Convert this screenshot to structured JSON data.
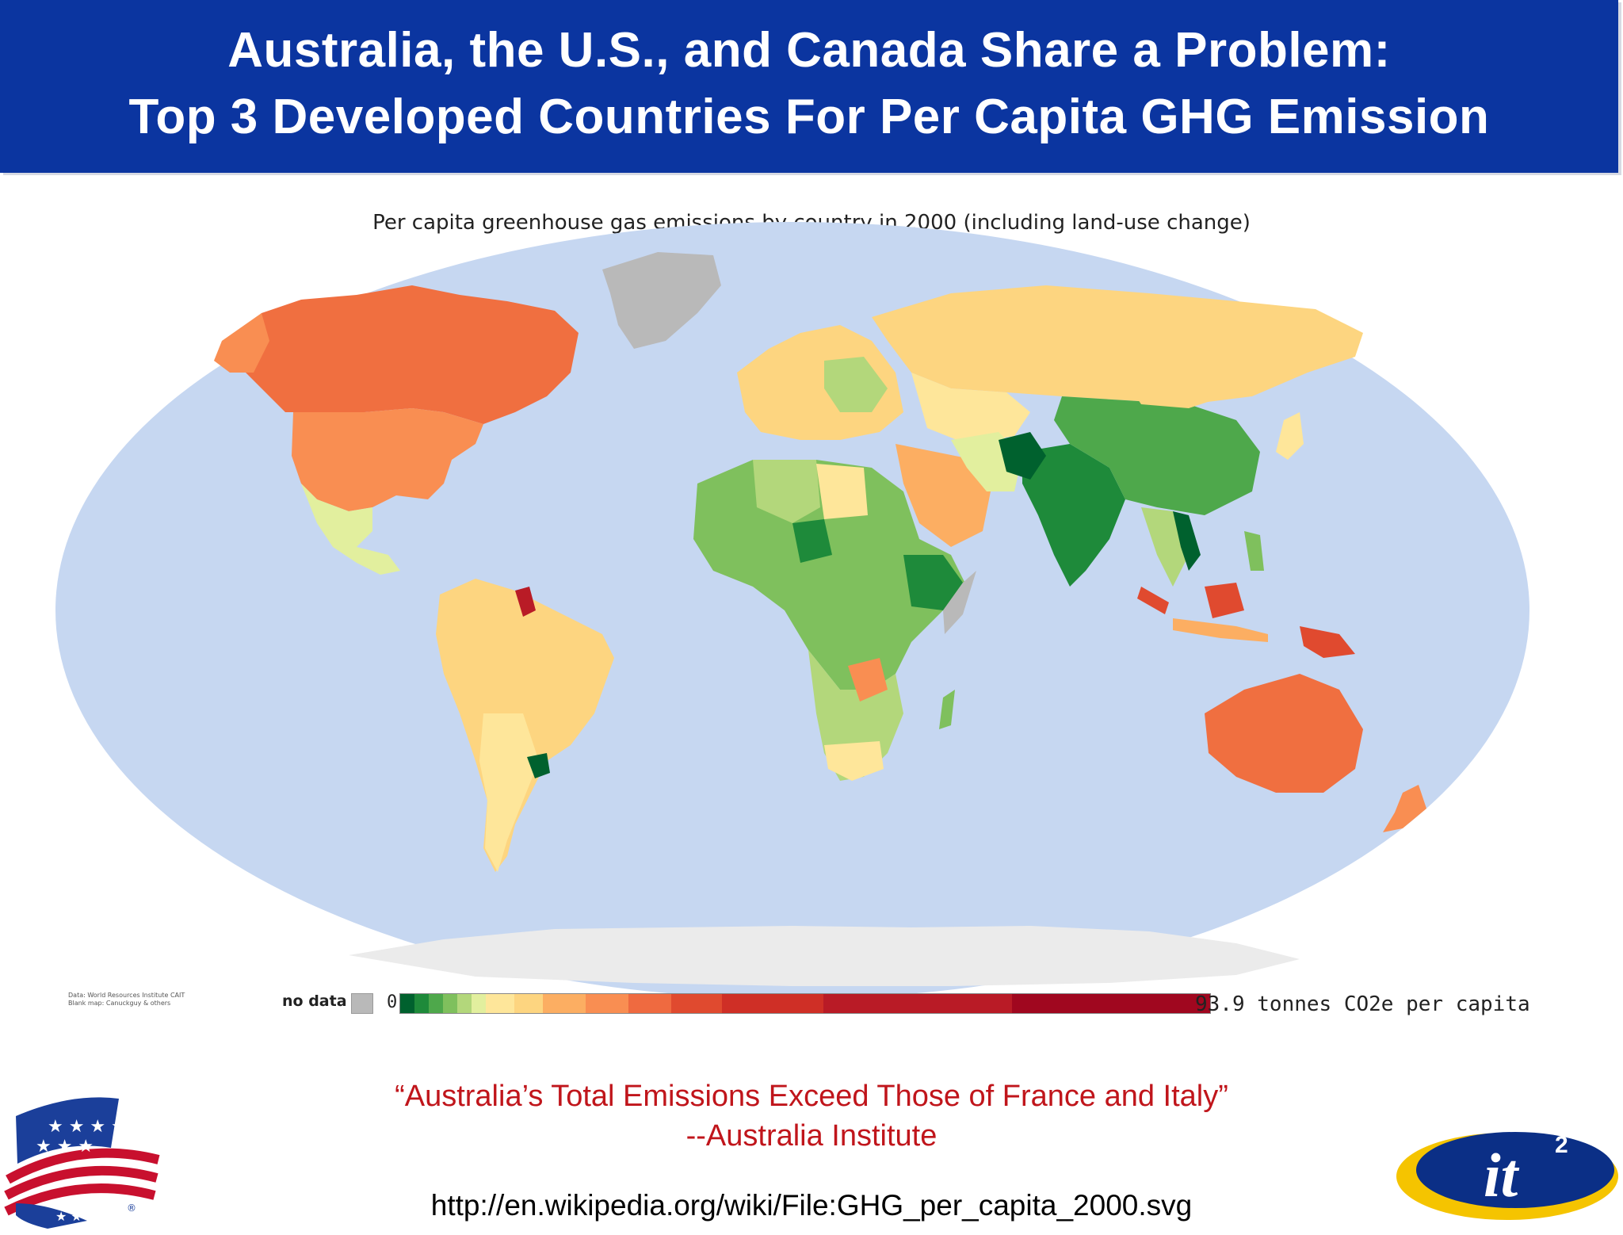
{
  "slide": {
    "title_line1": "Australia, the U.S., and Canada Share a Problem:",
    "title_line2": "Top 3 Developed Countries For Per Capita GHG Emission",
    "quote_line1": "“Australia’s Total Emissions Exceed Those of France and Italy”",
    "quote_line2": "--Australia Institute",
    "source_url": "http://en.wikipedia.org/wiki/File:GHG_per_capita_2000.svg"
  },
  "map": {
    "title": "Per capita greenhouse gas emissions by country in 2000 (including land-use change)",
    "credit_line1": "Data: World Resources Institute CAIT",
    "credit_line2": "Blank map: Canuckguy & others",
    "legend": {
      "no_data_label": "no data",
      "min_label": "0",
      "max_label": "93.9 tonnes CO2e per capita",
      "no_data_color": "#b9b9b9",
      "colors": [
        "#00612e",
        "#1e8a3a",
        "#4ea84b",
        "#7fc05d",
        "#b3d77b",
        "#e2ef9e",
        "#fee69a",
        "#fdd580",
        "#fcae62",
        "#f98e52",
        "#ef6a40",
        "#e04a2f",
        "#cf2f26",
        "#b91b26",
        "#a0071f"
      ]
    },
    "colors": {
      "ocean": "#c6d7f1",
      "canada": "#f06f40",
      "usa": "#f98e52",
      "australia": "#f06f40",
      "russia": "#fdd580",
      "greenland": "#b9b9b9",
      "antarctica": "#ebebeb"
    }
  },
  "logos": {
    "left_logo_icon": "american-flag-ribbon-logo",
    "right_logo_text": "it",
    "right_logo_superscript": "2"
  }
}
